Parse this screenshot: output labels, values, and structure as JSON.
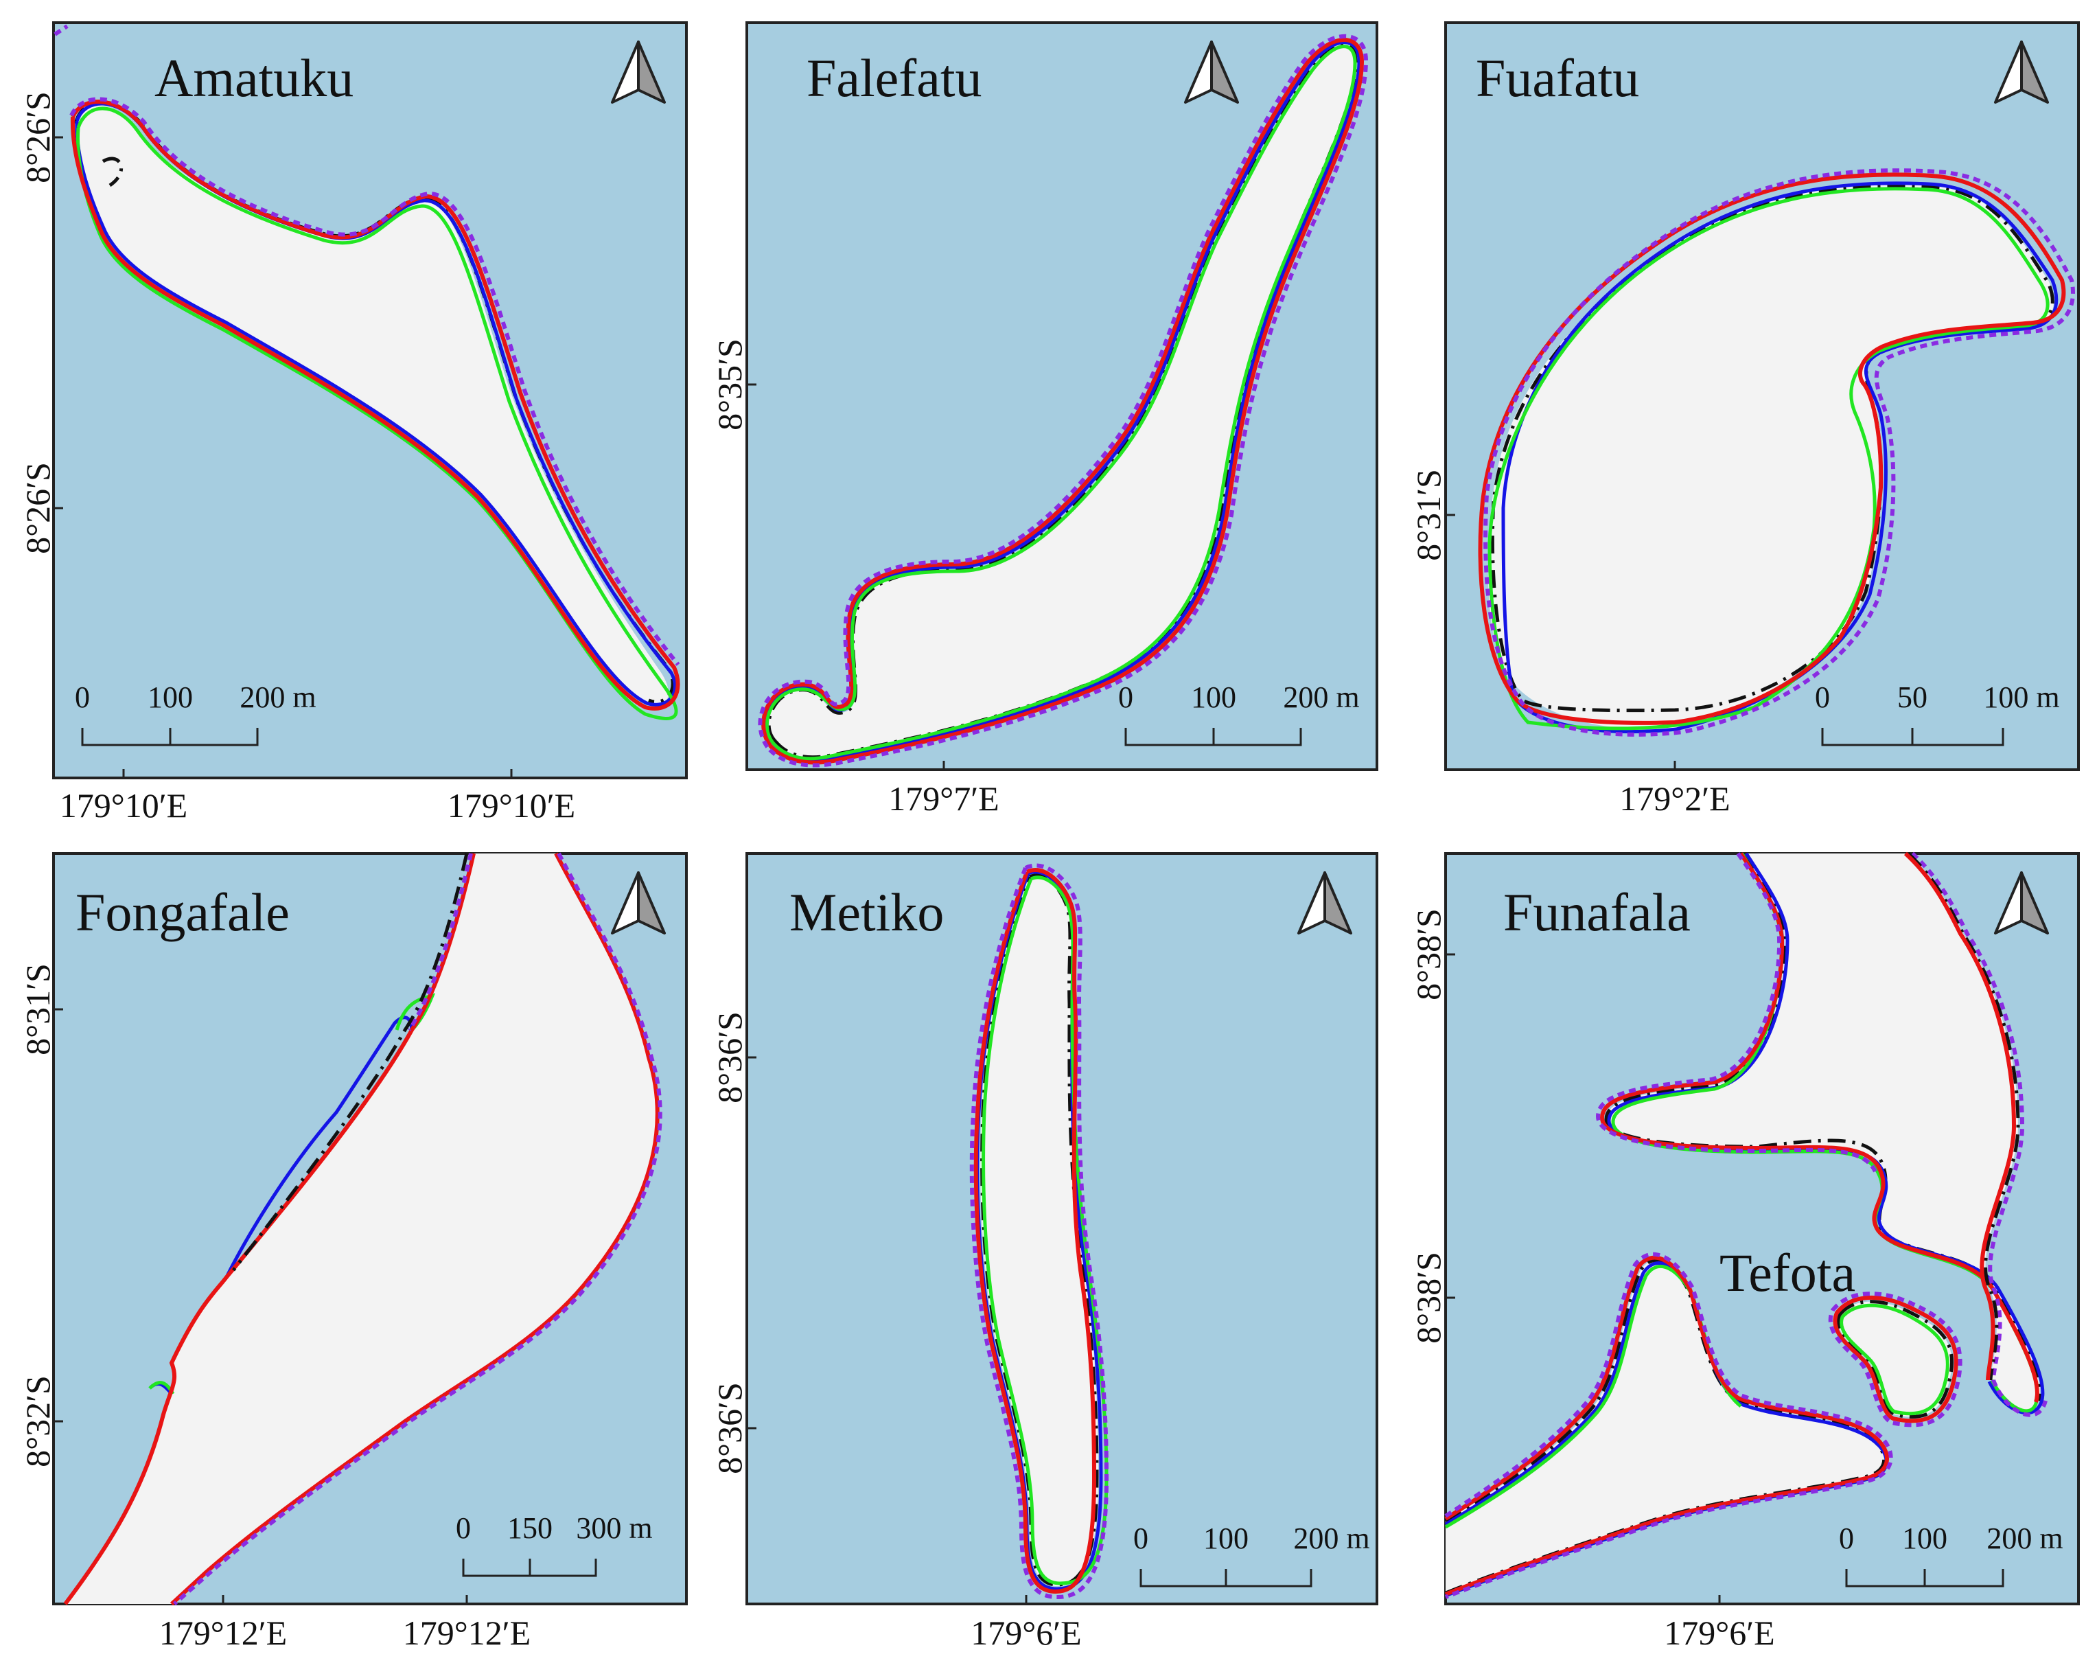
{
  "panels": [
    {
      "name": "Amatuku",
      "lat_labels": [
        "8°26′S",
        "8°26′S"
      ],
      "lon_labels": [
        "179°10′E",
        "179°10′E"
      ],
      "scale": [
        "0",
        "100",
        "200 m"
      ]
    },
    {
      "name": "Falefatu",
      "lat_labels": [
        "8°35′S"
      ],
      "lon_labels": [
        "179°7′E"
      ],
      "scale": [
        "0",
        "100",
        "200 m"
      ]
    },
    {
      "name": "Fuafatu",
      "lat_labels": [
        "8°31′S"
      ],
      "lon_labels": [
        "179°2′E"
      ],
      "scale": [
        "0",
        "50",
        "100 m"
      ]
    },
    {
      "name": "Fongafale",
      "lat_labels": [
        "8°31′S",
        "8°32′S"
      ],
      "lon_labels": [
        "179°12′E",
        "179°12′E"
      ],
      "scale": [
        "0",
        "150",
        "300 m"
      ]
    },
    {
      "name": "Metiko",
      "lat_labels": [
        "8°36′S",
        "8°36′S"
      ],
      "lon_labels": [
        "179°6′E"
      ],
      "scale": [
        "0",
        "100",
        "200 m"
      ]
    },
    {
      "name": "Funafala",
      "lat_labels": [
        "8°38′S",
        "8°38′S"
      ],
      "lon_labels": [
        "179°6′E"
      ],
      "scale": [
        "0",
        "100",
        "200 m"
      ],
      "sub_label": "Tefota"
    }
  ],
  "colors": {
    "water": "#a6cde0",
    "land": "#f3f3f3",
    "black": "#111111",
    "blue": "#1414e6",
    "green": "#22e622",
    "red": "#e81414",
    "purple": "#8a2be2"
  },
  "icon_names": {
    "north_arrow": "north-arrow-icon"
  }
}
